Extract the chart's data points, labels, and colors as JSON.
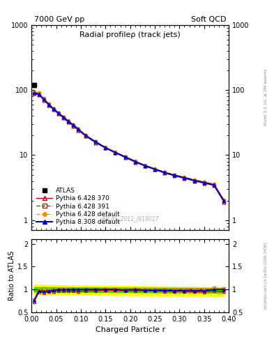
{
  "title_top_left": "7000 GeV pp",
  "title_top_right": "Soft QCD",
  "plot_title": "Radial profileρ (track jets)",
  "xlabel": "Charged Particle r",
  "ylabel_ratio": "Ratio to ATLAS",
  "right_label": "Rivet 3.1.10, ≥ 2M events",
  "watermark": "ATLAS_2011_I919017",
  "url_label": "mcplots.cern.ch [arXiv:1306.3436]",
  "x_data": [
    0.005,
    0.015,
    0.025,
    0.035,
    0.045,
    0.055,
    0.065,
    0.075,
    0.085,
    0.095,
    0.11,
    0.13,
    0.15,
    0.17,
    0.19,
    0.21,
    0.23,
    0.25,
    0.27,
    0.29,
    0.31,
    0.33,
    0.35,
    0.37,
    0.39
  ],
  "atlas_y": [
    120,
    90,
    75,
    62,
    52,
    44,
    38,
    33,
    29,
    25,
    20,
    16,
    13,
    11,
    9.5,
    8.0,
    7.0,
    6.2,
    5.5,
    5.0,
    4.6,
    4.2,
    3.9,
    3.5,
    2.0
  ],
  "atlas_yerr": [
    8,
    3,
    2.5,
    2,
    1.8,
    1.5,
    1.2,
    1.0,
    0.9,
    0.8,
    0.6,
    0.5,
    0.4,
    0.35,
    0.3,
    0.25,
    0.22,
    0.2,
    0.18,
    0.16,
    0.15,
    0.13,
    0.12,
    0.11,
    0.08
  ],
  "py6370_y": [
    88,
    85,
    70,
    59,
    50,
    43,
    37,
    32,
    28,
    24,
    19.5,
    15.5,
    12.8,
    10.8,
    9.2,
    7.8,
    6.8,
    6.0,
    5.3,
    4.8,
    4.4,
    4.0,
    3.7,
    3.4,
    1.9
  ],
  "py6391_y": [
    92,
    88,
    73,
    61,
    51,
    44,
    38,
    33,
    28.5,
    24.5,
    19.8,
    16.0,
    13.0,
    11.0,
    9.4,
    8.0,
    6.9,
    6.1,
    5.4,
    4.9,
    4.5,
    4.1,
    3.8,
    3.5,
    2.0
  ],
  "py6def_y": [
    93,
    90,
    74,
    62,
    52,
    45,
    38.5,
    33.5,
    29,
    25,
    20,
    16,
    13.2,
    11.1,
    9.5,
    8.1,
    7.0,
    6.2,
    5.5,
    5.0,
    4.6,
    4.2,
    3.9,
    3.6,
    2.05
  ],
  "py8def_y": [
    91,
    87,
    72,
    60,
    51,
    44,
    38,
    33,
    29,
    25,
    20,
    16,
    13,
    11,
    9.4,
    8.0,
    6.9,
    6.1,
    5.4,
    4.9,
    4.5,
    4.1,
    3.8,
    3.5,
    2.0
  ],
  "py6370_ratio": [
    0.73,
    0.94,
    0.93,
    0.95,
    0.96,
    0.98,
    0.97,
    0.97,
    0.97,
    0.96,
    0.975,
    0.97,
    0.985,
    0.982,
    0.968,
    0.975,
    0.971,
    0.968,
    0.964,
    0.96,
    0.957,
    0.952,
    0.949,
    0.971,
    0.95
  ],
  "py6391_ratio": [
    0.77,
    0.98,
    0.97,
    0.985,
    1.0,
    1.005,
    1.005,
    1.005,
    1.003,
    0.99,
    1.0,
    1.005,
    1.01,
    1.01,
    0.999,
    1.01,
    1.0,
    1.005,
    1.0,
    1.0,
    1.005,
    1.01,
    1.005,
    1.03,
    1.02
  ],
  "py6def_ratio": [
    0.78,
    1.0,
    0.99,
    1.01,
    1.01,
    1.025,
    1.015,
    1.015,
    1.005,
    1.005,
    1.005,
    1.005,
    1.02,
    1.015,
    1.005,
    1.015,
    1.005,
    1.005,
    1.005,
    1.005,
    1.005,
    1.005,
    1.005,
    1.03,
    1.025
  ],
  "py8def_ratio": [
    0.76,
    0.967,
    0.96,
    0.968,
    0.981,
    1.0,
    1.0,
    1.0,
    1.0,
    1.0,
    1.0,
    1.0,
    1.0,
    1.0,
    0.989,
    1.0,
    0.986,
    0.984,
    0.982,
    0.98,
    0.978,
    0.976,
    0.974,
    1.0,
    1.0
  ],
  "color_py6370": "#cc0000",
  "color_py6391": "#993300",
  "color_py6def": "#ff8800",
  "color_py8def": "#0000cc",
  "color_atlas": "#000000",
  "band_yellow": "#ffff00",
  "band_green": "#00cc00",
  "xlim": [
    0.0,
    0.4
  ],
  "ylim_main": [
    0.7,
    1000
  ],
  "ylim_ratio": [
    0.5,
    2.1
  ],
  "ratio_yticks": [
    0.5,
    1.0,
    1.5,
    2.0
  ],
  "ratio_yticklabels": [
    "0.5",
    "1",
    "1.5",
    "2"
  ]
}
